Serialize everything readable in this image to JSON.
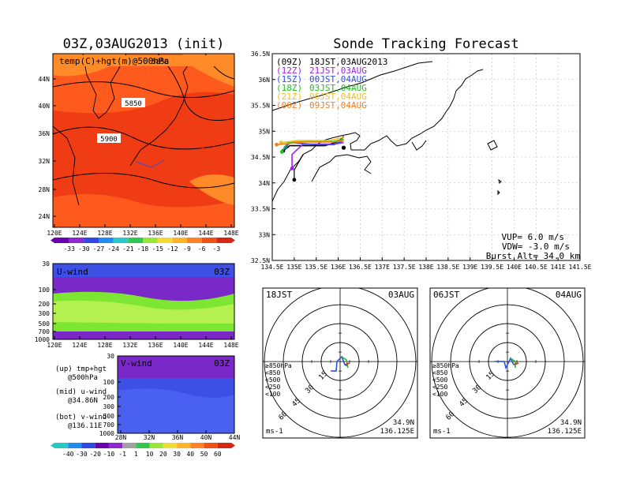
{
  "colors": {
    "temp_field": "#ff5a1e",
    "temp_warm": "#f03c14",
    "temp_cool": "#ff8a28",
    "wind_purple": "#7a28c8",
    "wind_blue": "#3c50e6",
    "wind_green": "#7de632",
    "wind_lgreen": "#b4f050",
    "track_09z": "#000000",
    "track_12z": "#a020f0",
    "track_15z": "#3050e0",
    "track_18z": "#20c020",
    "track_21z": "#f0c020",
    "track_00z": "#f08020"
  },
  "map_panel": {
    "title": "03Z,03AUG2013 (init)",
    "legend": "temp(C)+hgt(m)@500hPa",
    "contour_labels": [
      "5850",
      "5900",
      "5850"
    ],
    "lon_ticks": [
      "120E",
      "124E",
      "128E",
      "132E",
      "136E",
      "140E",
      "144E",
      "148E"
    ],
    "lat_ticks": [
      "44N",
      "40N",
      "36N",
      "32N",
      "28N",
      "24N"
    ],
    "colorbar_labels": [
      "-33",
      "-30",
      "-27",
      "-24",
      "-21",
      "-18",
      "-15",
      "-12",
      "-9",
      "-6",
      "-3"
    ]
  },
  "uwind_panel": {
    "label": "U-wind",
    "time": "03Z",
    "p_ticks": [
      "30",
      "100",
      "200",
      "300",
      "500",
      "700",
      "1000"
    ],
    "lon_ticks": [
      "120E",
      "124E",
      "128E",
      "132E",
      "136E",
      "140E",
      "144E",
      "148E"
    ]
  },
  "vwind_panel": {
    "label": "V-wind",
    "time": "03Z",
    "p_ticks": [
      "30",
      "100",
      "200",
      "300",
      "500",
      "700",
      "1000"
    ],
    "lat_ticks": [
      "28N",
      "32N",
      "36N",
      "40N",
      "44N"
    ],
    "colorbar_labels": [
      "-40",
      "-30",
      "-20",
      "-10",
      "-1",
      "1",
      "10",
      "20",
      "30",
      "40",
      "50",
      "60"
    ]
  },
  "notes": [
    {
      "line1": "(up) tmp+hgt",
      "line2": "@500hPa"
    },
    {
      "line1": "(mid) u-wind",
      "line2": "@34.86N"
    },
    {
      "line1": "(bot) v-wind",
      "line2": "@136.11E"
    }
  ],
  "track_panel": {
    "title": "Sonde Tracking Forecast",
    "series": [
      {
        "code": "(09Z)",
        "time": "18JST,03AUG2013"
      },
      {
        "code": "(12Z)",
        "time": "21JST,03AUG"
      },
      {
        "code": "(15Z)",
        "time": "00JST,04AUG"
      },
      {
        "code": "(18Z)",
        "time": "03JST,04AUG"
      },
      {
        "code": "(21Z)",
        "time": "06JST,04AUG"
      },
      {
        "code": "(00Z)",
        "time": "09JST,04AUG"
      }
    ],
    "lat_ticks": [
      "36.5N",
      "36N",
      "35.5N",
      "35N",
      "34.5N",
      "34N",
      "33.5N",
      "33N",
      "32.5N"
    ],
    "lon_ticks": [
      "134.5E",
      "135E",
      "135.5E",
      "136E",
      "136.5E",
      "137E",
      "137.5E",
      "138E",
      "138.5E",
      "139E",
      "139.5E",
      "140E",
      "140.5E",
      "141E",
      "141.5E"
    ],
    "params": [
      "VUP= 6.0 m/s",
      "VDW= -3.0 m/s",
      "Burst Alt= 34.0 km"
    ]
  },
  "chart_data": [
    {
      "type": "heatmap",
      "title": "03Z,03AUG2013 (init)",
      "legend": "temp(C)+hgt(m)@500hPa",
      "xlim": [
        "120E",
        "148E"
      ],
      "ylim": [
        "23N",
        "46N"
      ],
      "contours": [
        "5850",
        "5900"
      ]
    },
    {
      "type": "heatmap",
      "title": "U-wind 03Z",
      "xlim": [
        "120E",
        "148E"
      ],
      "ylim": [
        1000,
        30
      ],
      "yscale": "log"
    },
    {
      "type": "heatmap",
      "title": "V-wind 03Z",
      "xlim": [
        "28N",
        "44N"
      ],
      "ylim": [
        1000,
        30
      ],
      "yscale": "log"
    },
    {
      "type": "line",
      "title": "Sonde Tracking Forecast",
      "xlim": [
        134.5,
        141.5
      ],
      "ylim": [
        32.5,
        36.5
      ],
      "series": [
        {
          "name": "(09Z) 18JST,03AUG2013",
          "color": "#000000",
          "x": [
            136.125,
            136.0,
            135.7,
            135.4,
            134.9,
            134.75
          ],
          "y": [
            34.9,
            34.8,
            34.72,
            34.72,
            34.72,
            34.62
          ]
        },
        {
          "name": "(12Z) 21JST,03AUG",
          "color": "#a020f0",
          "x": [
            136.125,
            135.9,
            135.2,
            134.95,
            134.95
          ],
          "y": [
            34.78,
            34.75,
            34.75,
            34.55,
            34.28
          ]
        },
        {
          "name": "(15Z) 00JST,04AUG",
          "color": "#3050e0",
          "x": [
            136.125,
            135.9,
            135.5,
            134.9,
            134.8
          ],
          "y": [
            34.82,
            34.74,
            34.74,
            34.78,
            34.68
          ]
        },
        {
          "name": "(18Z) 03JST,04AUG",
          "color": "#20c020",
          "x": [
            136.125,
            135.9,
            135.3,
            134.85,
            134.72
          ],
          "y": [
            34.85,
            34.8,
            34.8,
            34.78,
            34.6
          ]
        },
        {
          "name": "(21Z) 06JST,04AUG",
          "color": "#f0c020",
          "x": [
            136.125,
            135.8,
            135.1,
            134.7
          ],
          "y": [
            34.88,
            34.82,
            34.82,
            34.78
          ]
        },
        {
          "name": "(00Z) 09JST,04AUG",
          "color": "#f08020",
          "x": [
            136.125,
            135.9,
            135.2,
            134.6
          ],
          "y": [
            34.82,
            34.79,
            34.79,
            34.74
          ]
        }
      ],
      "annotations": [
        "VUP= 6.0 m/s",
        "VDW= -3.0 m/s",
        "Burst Alt= 34.0 km"
      ]
    },
    {
      "type": "scatter",
      "title": "18JST 03AUG",
      "center": "34.9N 136.125E",
      "rings": [
        "15",
        "30",
        "45",
        "60"
      ],
      "unit": "ms-1",
      "legend": [
        "≥850hPa",
        "<850",
        "<500",
        "<250",
        "<100"
      ]
    },
    {
      "type": "scatter",
      "title": "06JST 04AUG",
      "center": "34.9N 136.125E",
      "rings": [
        "15",
        "30",
        "45",
        "60"
      ],
      "unit": "ms-1",
      "legend": [
        "≥850hPa",
        "<850",
        "<500",
        "<250",
        "<100"
      ]
    }
  ],
  "hodographs": [
    {
      "time": "18JST",
      "date": "03AUG",
      "rings": [
        "15",
        "30",
        "45",
        "60"
      ],
      "legend": [
        "≥850hPa",
        "<850",
        "<500",
        "<250",
        "<100"
      ],
      "unit": "ms-1",
      "lat": "34.9N",
      "lon": "136.125E"
    },
    {
      "time": "06JST",
      "date": "04AUG",
      "rings": [
        "15",
        "30",
        "45",
        "60"
      ],
      "legend": [
        "≥850hPa",
        "<850",
        "<500",
        "<250",
        "<100"
      ],
      "unit": "ms-1",
      "lat": "34.9N",
      "lon": "136.125E"
    }
  ]
}
